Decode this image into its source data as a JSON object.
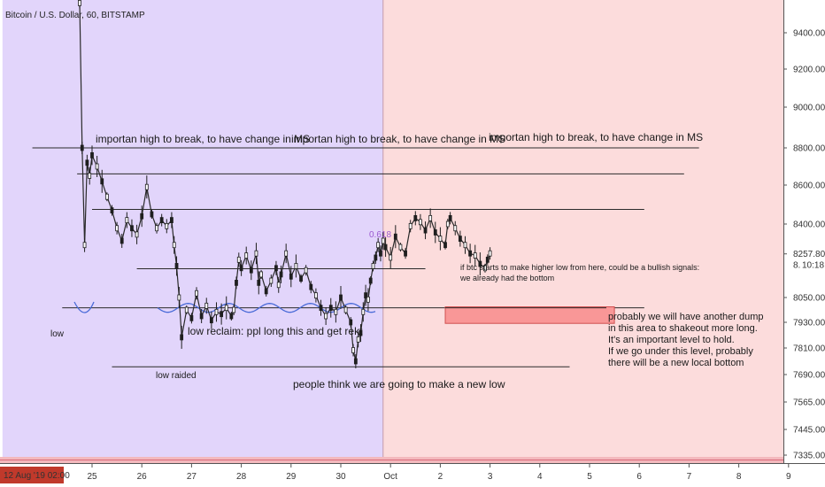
{
  "chart_data": {
    "type": "candlestick",
    "symbol_label": "Bitcoin / U.S. Dollar, 60, BITSTAMP",
    "ylim": [
      7280,
      9680
    ],
    "y_ticks": [
      9400,
      9200,
      9000,
      8800,
      8600,
      8400,
      8050,
      7930,
      7810,
      7690,
      7565,
      7445,
      7335
    ],
    "y_tick_labels": [
      "9400.00",
      "9200.00",
      "9000.00",
      "8800.00",
      "8600.00",
      "8400.00",
      "8050.00",
      "7930.00",
      "7810.00",
      "7690.00",
      "7565.00",
      "7445.00",
      "7335.00"
    ],
    "price_label": "8257.80",
    "countdown_label": "10:18",
    "period_label": "8.",
    "x_date_label": "12 Aug '19  02:00",
    "x_ticks": [
      {
        "day": 25,
        "label": "25"
      },
      {
        "day": 26,
        "label": "26"
      },
      {
        "day": 27,
        "label": "27"
      },
      {
        "day": 28,
        "label": "28"
      },
      {
        "day": 29,
        "label": "29"
      },
      {
        "day": 30,
        "label": "30"
      },
      {
        "day": 31,
        "label": "Oct"
      },
      {
        "day": 32,
        "label": "2"
      },
      {
        "day": 33,
        "label": "3"
      },
      {
        "day": 34,
        "label": "4"
      },
      {
        "day": 35,
        "label": "5"
      },
      {
        "day": 36,
        "label": "6"
      },
      {
        "day": 37,
        "label": "7"
      },
      {
        "day": 38,
        "label": "8"
      },
      {
        "day": 39,
        "label": "9"
      }
    ],
    "regions": [
      {
        "from_day": 23.2,
        "to_day": 30.85,
        "color": "#e2d5fb"
      },
      {
        "from_day": 30.85,
        "to_day": 39.2,
        "color": "#fcdcdc"
      }
    ],
    "levels": [
      {
        "price": 8800,
        "from_day": 23.8,
        "to_day": 37.2
      },
      {
        "price": 8660,
        "from_day": 24.7,
        "to_day": 36.9
      },
      {
        "price": 8475,
        "from_day": 25.0,
        "to_day": 36.1
      },
      {
        "price": 8187,
        "from_day": 25.9,
        "to_day": 31.7
      },
      {
        "price": 8000,
        "from_day": 24.4,
        "to_day": 36.1
      },
      {
        "price": 7725,
        "from_day": 25.4,
        "to_day": 34.6
      }
    ],
    "box": {
      "from_day": 32.1,
      "to_day": 35.5,
      "top": 8005,
      "bottom": 7925,
      "color": "#f99797"
    },
    "marker_label": "0.618",
    "annotations": [
      "importan high to break, to have change in MS",
      "importan high to break, to have change in MS",
      "importan high to break, to have change in MS",
      "low",
      "low raided",
      "low reclaim: ppl long this and get rekt",
      "people think we are going to make a new low",
      "if btc starts to make higher low from here, could be a bullish signals:",
      "we already had the bottom",
      "probably we will have another dump",
      "in this area to shakeout more long.",
      "It's an important level to hold.",
      "If we go under this level, probably",
      "there will be a new local bottom"
    ],
    "series": [
      {
        "name": "price",
        "points": [
          [
            24.7,
            9650
          ],
          [
            24.75,
            9600
          ],
          [
            24.8,
            8800
          ],
          [
            24.85,
            8300
          ],
          [
            24.9,
            8720
          ],
          [
            24.95,
            8650
          ],
          [
            25.0,
            8760
          ],
          [
            25.1,
            8700
          ],
          [
            25.2,
            8620
          ],
          [
            25.3,
            8540
          ],
          [
            25.4,
            8470
          ],
          [
            25.5,
            8380
          ],
          [
            25.6,
            8320
          ],
          [
            25.7,
            8420
          ],
          [
            25.8,
            8380
          ],
          [
            25.9,
            8350
          ],
          [
            26.0,
            8440
          ],
          [
            26.1,
            8590
          ],
          [
            26.2,
            8450
          ],
          [
            26.3,
            8380
          ],
          [
            26.4,
            8420
          ],
          [
            26.5,
            8390
          ],
          [
            26.6,
            8420
          ],
          [
            26.65,
            8300
          ],
          [
            26.7,
            8200
          ],
          [
            26.75,
            8050
          ],
          [
            26.8,
            7860
          ],
          [
            26.9,
            7990
          ],
          [
            27.0,
            7950
          ],
          [
            27.1,
            8070
          ],
          [
            27.2,
            7960
          ],
          [
            27.3,
            8010
          ],
          [
            27.4,
            7940
          ],
          [
            27.5,
            7980
          ],
          [
            27.6,
            7970
          ],
          [
            27.7,
            8000
          ],
          [
            27.8,
            7960
          ],
          [
            27.85,
            7990
          ],
          [
            27.9,
            8120
          ],
          [
            27.95,
            8230
          ],
          [
            28.0,
            8190
          ],
          [
            28.1,
            8250
          ],
          [
            28.2,
            8180
          ],
          [
            28.3,
            8260
          ],
          [
            28.35,
            8120
          ],
          [
            28.4,
            8160
          ],
          [
            28.5,
            8080
          ],
          [
            28.6,
            8130
          ],
          [
            28.7,
            8190
          ],
          [
            28.75,
            8110
          ],
          [
            28.8,
            8160
          ],
          [
            28.9,
            8260
          ],
          [
            29.0,
            8150
          ],
          [
            29.1,
            8200
          ],
          [
            29.2,
            8140
          ],
          [
            29.3,
            8180
          ],
          [
            29.4,
            8100
          ],
          [
            29.5,
            8060
          ],
          [
            29.6,
            8000
          ],
          [
            29.7,
            7960
          ],
          [
            29.8,
            8000
          ],
          [
            29.9,
            7980
          ],
          [
            30.0,
            8050
          ],
          [
            30.1,
            7990
          ],
          [
            30.2,
            7930
          ],
          [
            30.25,
            7800
          ],
          [
            30.3,
            7750
          ],
          [
            30.35,
            7850
          ],
          [
            30.4,
            7880
          ],
          [
            30.45,
            7980
          ],
          [
            30.5,
            8060
          ],
          [
            30.55,
            8040
          ],
          [
            30.6,
            8130
          ],
          [
            30.65,
            8200
          ],
          [
            30.7,
            8240
          ],
          [
            30.75,
            8300
          ],
          [
            30.8,
            8260
          ],
          [
            30.85,
            8320
          ],
          [
            30.9,
            8290
          ],
          [
            31.0,
            8240
          ],
          [
            31.1,
            8340
          ],
          [
            31.2,
            8290
          ],
          [
            31.3,
            8260
          ],
          [
            31.4,
            8390
          ],
          [
            31.5,
            8430
          ],
          [
            31.6,
            8410
          ],
          [
            31.7,
            8370
          ],
          [
            31.8,
            8430
          ],
          [
            31.9,
            8360
          ],
          [
            32.0,
            8330
          ],
          [
            32.1,
            8300
          ],
          [
            32.15,
            8400
          ],
          [
            32.2,
            8430
          ],
          [
            32.3,
            8380
          ],
          [
            32.4,
            8330
          ],
          [
            32.5,
            8300
          ],
          [
            32.6,
            8260
          ],
          [
            32.7,
            8250
          ],
          [
            32.8,
            8210
          ],
          [
            32.9,
            8190
          ],
          [
            32.95,
            8230
          ],
          [
            33.0,
            8260
          ]
        ]
      }
    ]
  }
}
